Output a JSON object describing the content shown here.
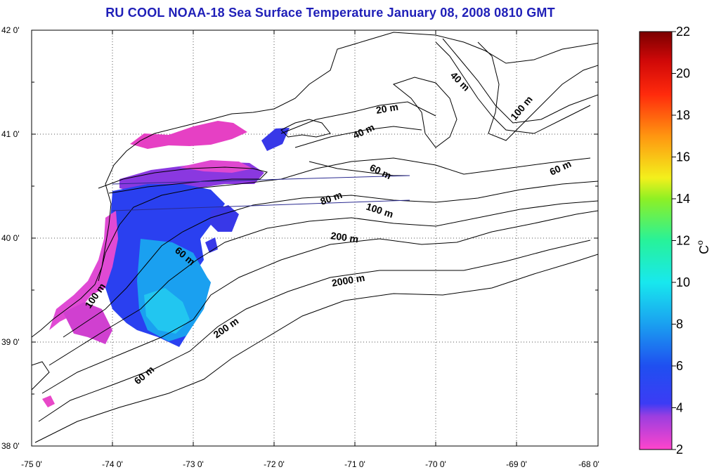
{
  "title": "RU COOL  NOAA-18 Sea Surface Temperature January 08, 2008 0810 GMT",
  "map": {
    "lon_labels": [
      "-75 0'",
      "-74 0'",
      "-73 0'",
      "-72 0'",
      "-71 0'",
      "-70 0'",
      "-69 0'",
      "-68 0'"
    ],
    "lat_labels": [
      "42 0'",
      "41 0'",
      "40 0'",
      "39 0'",
      "38 0'"
    ],
    "depth_labels": [
      "40 m",
      "20 m",
      "40 m",
      "100 m",
      "60 m",
      "60 m",
      "80 m",
      "100 m",
      "200 m",
      "60 m",
      "2000 m",
      "200 m",
      "60 m",
      "100 m"
    ]
  },
  "colorbar": {
    "ticks": [
      "22",
      "20",
      "18",
      "16",
      "14",
      "12",
      "10",
      "8",
      "6",
      "4",
      "2"
    ],
    "unit": "C",
    "unit_sup": "o",
    "range": [
      2,
      22
    ],
    "colors": [
      "#ff44cc",
      "#9b3ee0",
      "#3c3cf5",
      "#1f4ff0",
      "#1aa0f0",
      "#18e8ee",
      "#27f29a",
      "#8ef024",
      "#f3f01c",
      "#ff9610",
      "#ff2a0c",
      "#d00808",
      "#7a0000"
    ]
  }
}
